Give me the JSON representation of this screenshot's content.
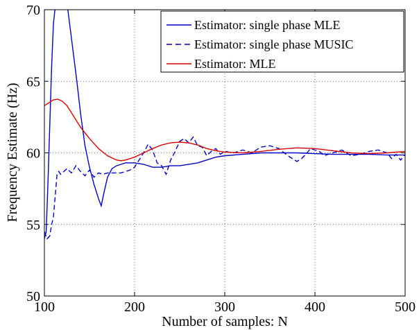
{
  "chart_data": {
    "type": "line",
    "title": "",
    "xlabel": "Number of samples: N",
    "ylabel": "Frequency Estimate (Hz)",
    "xlim": [
      100,
      500
    ],
    "ylim": [
      50,
      70
    ],
    "xticks": [
      100,
      200,
      300,
      400,
      500
    ],
    "yticks": [
      50,
      55,
      60,
      65,
      70
    ],
    "grid": true,
    "legend_position": "top-right",
    "series": [
      {
        "name": "Estimator: single phase MLE",
        "color": "#0000cc",
        "style": "solid",
        "x": [
          100,
          102,
          104,
          106,
          108,
          110,
          112,
          115,
          118,
          120,
          123,
          126,
          128,
          130,
          133,
          136,
          140,
          145,
          150,
          155,
          160,
          163,
          166,
          170,
          175,
          180,
          185,
          190,
          195,
          200,
          210,
          220,
          230,
          240,
          250,
          260,
          270,
          280,
          290,
          300,
          320,
          340,
          360,
          380,
          400,
          420,
          440,
          460,
          480,
          500
        ],
        "y": [
          54.0,
          54.5,
          58.0,
          62.0,
          66.0,
          69.0,
          70.2,
          71.5,
          72.0,
          71.8,
          71.0,
          70.0,
          69.0,
          68.0,
          66.5,
          65.0,
          62.8,
          60.5,
          59.0,
          57.8,
          56.8,
          56.3,
          57.2,
          58.3,
          58.9,
          59.1,
          59.2,
          59.3,
          59.3,
          59.3,
          59.2,
          59.0,
          59.0,
          59.1,
          59.1,
          59.2,
          59.3,
          59.5,
          59.7,
          59.8,
          59.9,
          60.0,
          60.0,
          60.0,
          59.95,
          59.9,
          59.9,
          59.9,
          59.85,
          59.85
        ]
      },
      {
        "name": "Estimator: single phase MUSIC",
        "color": "#0000cc",
        "style": "dashed",
        "x": [
          100,
          103,
          106,
          108,
          110,
          112,
          114,
          116,
          118,
          120,
          125,
          130,
          135,
          140,
          145,
          150,
          155,
          160,
          165,
          170,
          175,
          180,
          185,
          190,
          195,
          200,
          205,
          210,
          215,
          220,
          225,
          230,
          235,
          240,
          245,
          250,
          255,
          260,
          265,
          270,
          275,
          280,
          285,
          290,
          295,
          300,
          310,
          320,
          330,
          340,
          350,
          360,
          370,
          380,
          385,
          390,
          395,
          400,
          405,
          410,
          420,
          430,
          440,
          450,
          460,
          470,
          480,
          485,
          490,
          495,
          500
        ],
        "y": [
          54.5,
          54.0,
          54.2,
          55.0,
          55.5,
          57.0,
          58.5,
          58.7,
          58.5,
          58.6,
          58.9,
          58.6,
          59.1,
          58.7,
          58.4,
          58.8,
          58.3,
          58.6,
          58.5,
          58.6,
          58.6,
          58.6,
          58.6,
          58.7,
          58.8,
          59.0,
          59.5,
          60.0,
          60.6,
          60.2,
          59.3,
          59.1,
          58.5,
          59.5,
          60.1,
          60.8,
          61.0,
          60.7,
          61.1,
          60.5,
          60.4,
          59.8,
          60.1,
          60.3,
          59.9,
          60.1,
          60.0,
          60.2,
          60.0,
          60.4,
          60.5,
          60.3,
          59.8,
          59.4,
          59.6,
          59.9,
          60.3,
          60.2,
          60.1,
          59.8,
          60.0,
          60.2,
          59.8,
          59.9,
          60.1,
          60.2,
          60.0,
          59.6,
          59.9,
          59.5,
          59.9
        ]
      },
      {
        "name": "Estimator: MLE",
        "color": "#dd0000",
        "style": "solid",
        "x": [
          100,
          105,
          110,
          115,
          120,
          125,
          130,
          135,
          140,
          150,
          160,
          170,
          180,
          185,
          190,
          200,
          210,
          220,
          230,
          240,
          250,
          260,
          270,
          280,
          290,
          300,
          320,
          340,
          360,
          380,
          400,
          420,
          440,
          460,
          480,
          500
        ],
        "y": [
          63.3,
          63.5,
          63.7,
          63.75,
          63.6,
          63.3,
          62.8,
          62.3,
          61.8,
          61.0,
          60.3,
          59.8,
          59.5,
          59.45,
          59.5,
          59.7,
          60.0,
          60.3,
          60.55,
          60.7,
          60.75,
          60.7,
          60.55,
          60.3,
          60.15,
          60.05,
          60.0,
          60.1,
          60.25,
          60.35,
          60.3,
          60.15,
          60.0,
          59.95,
          60.0,
          60.1
        ]
      }
    ]
  }
}
